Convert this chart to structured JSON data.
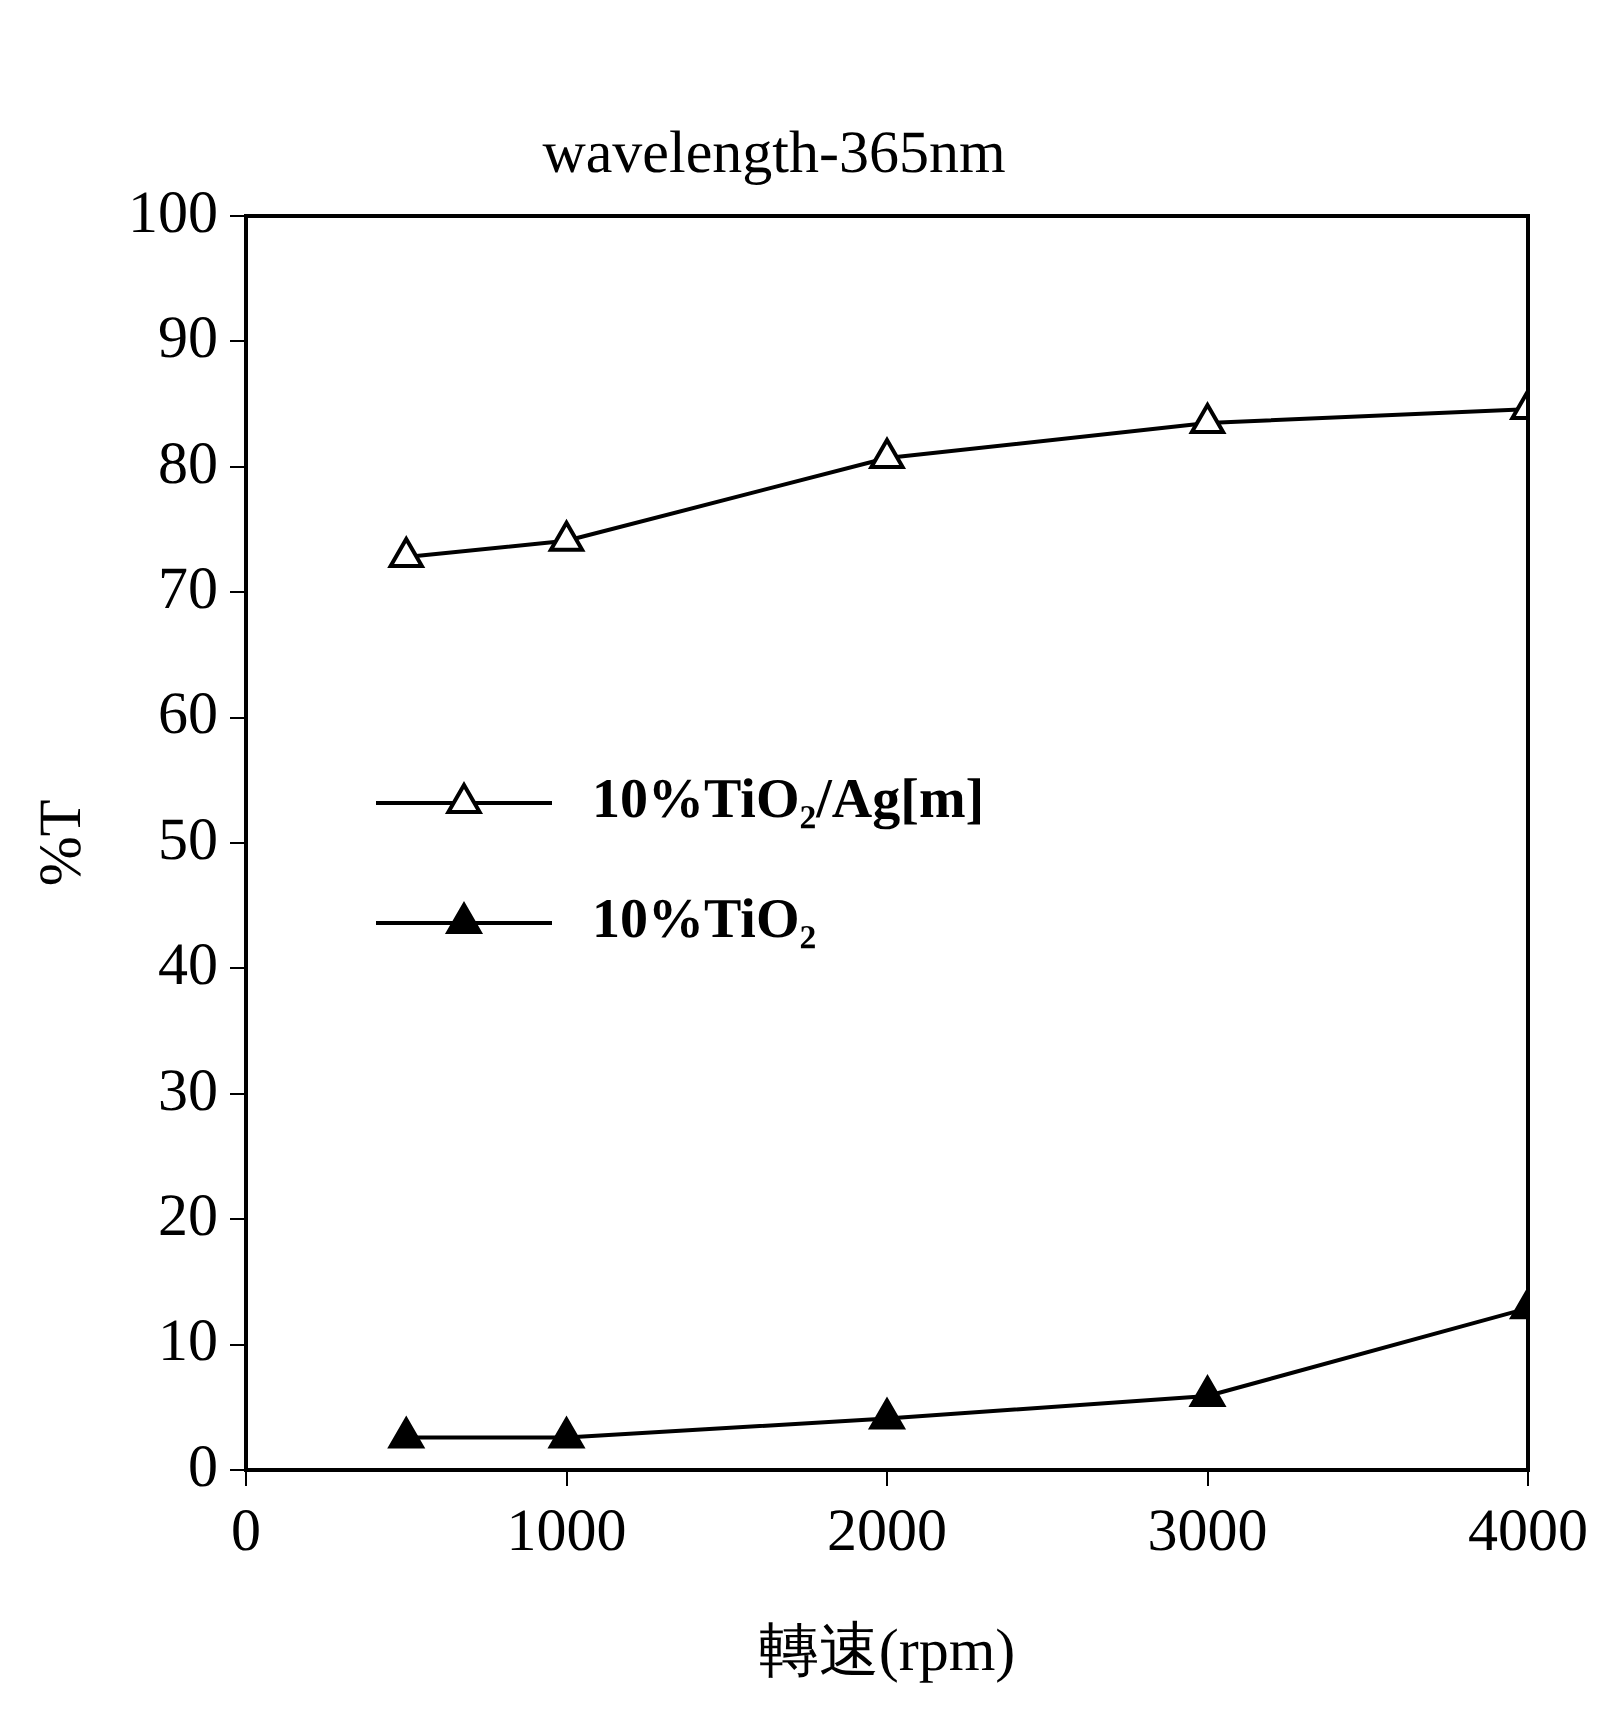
{
  "chart_data": {
    "type": "line",
    "title": "wavelength-365nm",
    "xlabel": "轉速(rpm)",
    "ylabel": "%T",
    "x": [
      500,
      1000,
      2000,
      3000,
      4000
    ],
    "series": [
      {
        "name": "10%TiO₂/Ag[m]",
        "color": "#000000",
        "values": [
          72.8,
          74.1,
          80.7,
          83.5,
          84.6
        ]
      },
      {
        "name": "10%TiO₂",
        "color": "#000000",
        "values": [
          2.6,
          2.6,
          4.1,
          5.9,
          12.9
        ]
      }
    ],
    "xlim": [
      0,
      4000
    ],
    "xticks": [
      0,
      1000,
      2000,
      3000,
      4000
    ],
    "ylim": [
      0,
      100
    ],
    "yticks": [
      0,
      10,
      20,
      30,
      40,
      50,
      60,
      70,
      80,
      90,
      100
    ],
    "grid": false,
    "legend": "left",
    "marker": "triangle",
    "line_style": "solid"
  }
}
